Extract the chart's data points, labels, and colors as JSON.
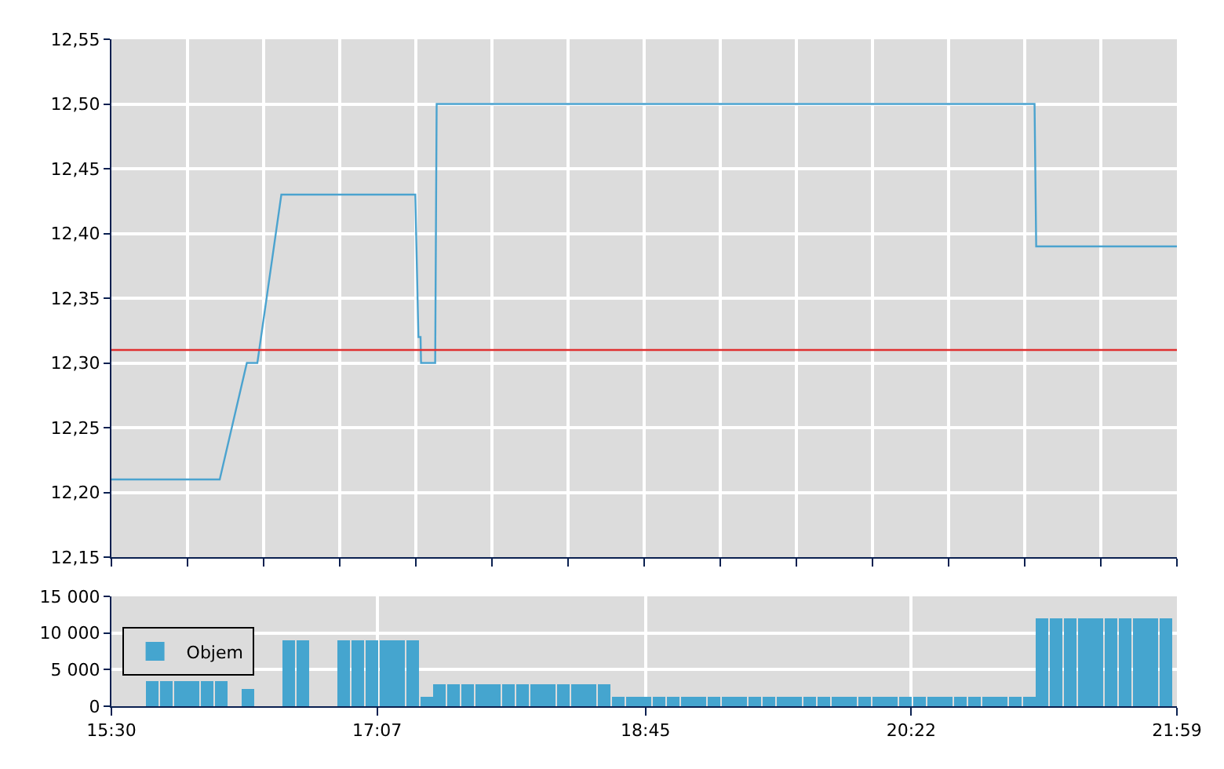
{
  "chart_data": [
    {
      "type": "line",
      "xlim": [
        15.5,
        21.9833
      ],
      "xticks": [
        {
          "value": 15.5,
          "label": null
        },
        {
          "value": 15.9631,
          "label": null
        },
        {
          "value": 16.4262,
          "label": null
        },
        {
          "value": 16.8893,
          "label": null
        },
        {
          "value": 17.3524,
          "label": null
        },
        {
          "value": 17.8155,
          "label": null
        },
        {
          "value": 18.2786,
          "label": null
        },
        {
          "value": 18.7417,
          "label": null
        },
        {
          "value": 19.2048,
          "label": null
        },
        {
          "value": 19.6679,
          "label": null
        },
        {
          "value": 20.131,
          "label": null
        },
        {
          "value": 20.5941,
          "label": null
        },
        {
          "value": 21.0571,
          "label": null
        },
        {
          "value": 21.5202,
          "label": null
        },
        {
          "value": 21.9833,
          "label": null
        }
      ],
      "ylim": [
        12.15,
        12.55
      ],
      "yticks": [
        {
          "value": 12.15,
          "label": "12,15"
        },
        {
          "value": 12.2,
          "label": "12,20"
        },
        {
          "value": 12.25,
          "label": "12,25"
        },
        {
          "value": 12.3,
          "label": "12,30"
        },
        {
          "value": 12.35,
          "label": "12,35"
        },
        {
          "value": 12.4,
          "label": "12,40"
        },
        {
          "value": 12.45,
          "label": "12,45"
        },
        {
          "value": 12.5,
          "label": "12,50"
        },
        {
          "value": 12.55,
          "label": "12,55"
        }
      ],
      "grid": true,
      "tick_labels": "y",
      "legend": false,
      "series": [
        {
          "color": "#4ba3cf",
          "x": [
            15.5,
            16.159,
            16.324,
            16.388,
            16.534,
            17.349,
            17.368,
            17.381,
            17.384,
            17.47,
            17.479,
            21.117,
            21.127,
            21.9833
          ],
          "values": [
            12.21,
            12.21,
            12.3,
            12.3,
            12.43,
            12.43,
            12.32,
            12.32,
            12.3,
            12.3,
            12.5,
            12.5,
            12.39,
            12.39
          ]
        }
      ],
      "ref_lines": [
        {
          "axis": "y",
          "value": 12.31,
          "color": "#e03030"
        }
      ]
    },
    {
      "type": "bar",
      "xlim": [
        15.5,
        21.9833
      ],
      "xticks": [
        {
          "value": 15.5,
          "label": "15:30"
        },
        {
          "value": 17.1167,
          "label": "17:07"
        },
        {
          "value": 18.75,
          "label": "18:45"
        },
        {
          "value": 20.3667,
          "label": "20:22"
        },
        {
          "value": 21.9833,
          "label": "21:59"
        }
      ],
      "ylim": [
        0,
        15000
      ],
      "yticks": [
        {
          "value": 0,
          "label": "0"
        },
        {
          "value": 5000,
          "label": "5 000"
        },
        {
          "value": 10000,
          "label": "10 000"
        },
        {
          "value": 15000,
          "label": "15 000"
        }
      ],
      "grid": true,
      "legend": "left",
      "series": [
        {
          "name": "Objem",
          "color": "#45a5cf",
          "x": [
            15.75,
            15.8333,
            15.9167,
            16.0,
            16.0833,
            16.1667,
            16.3333,
            16.5833,
            16.6667,
            16.9167,
            17.0,
            17.0833,
            17.1667,
            17.25,
            17.3333,
            17.4167,
            17.5,
            17.5833,
            17.6667,
            17.75,
            17.8333,
            17.9167,
            18.0,
            18.0833,
            18.1667,
            18.25,
            18.3333,
            18.4167,
            18.5,
            18.5833,
            18.6667,
            18.75,
            18.8333,
            18.9167,
            19.0,
            19.0833,
            19.1667,
            19.25,
            19.3333,
            19.4167,
            19.5,
            19.5833,
            19.6667,
            19.75,
            19.8333,
            19.9167,
            20.0,
            20.0833,
            20.1667,
            20.25,
            20.3333,
            20.4167,
            20.5,
            20.5833,
            20.6667,
            20.75,
            20.8333,
            20.9167,
            21.0,
            21.0833,
            21.1667,
            21.25,
            21.3333,
            21.4167,
            21.5,
            21.5833,
            21.6667,
            21.75,
            21.8333,
            21.9167
          ],
          "values": [
            3500,
            3500,
            3500,
            3500,
            3500,
            3500,
            2400,
            9000,
            9000,
            9000,
            9000,
            9000,
            9000,
            9000,
            9000,
            1250,
            3000,
            3000,
            3000,
            3000,
            3000,
            3000,
            3000,
            3000,
            3000,
            3000,
            3000,
            3000,
            3000,
            1250,
            1250,
            1250,
            1250,
            1250,
            1250,
            1250,
            1250,
            1250,
            1250,
            1250,
            1250,
            1250,
            1250,
            1250,
            1250,
            1250,
            1250,
            1250,
            1250,
            1250,
            1250,
            1250,
            1250,
            1250,
            1250,
            1250,
            1250,
            1250,
            1250,
            1250,
            12000,
            12000,
            12000,
            12000,
            12000,
            12000,
            12000,
            12000,
            12000,
            12000
          ]
        }
      ]
    }
  ]
}
